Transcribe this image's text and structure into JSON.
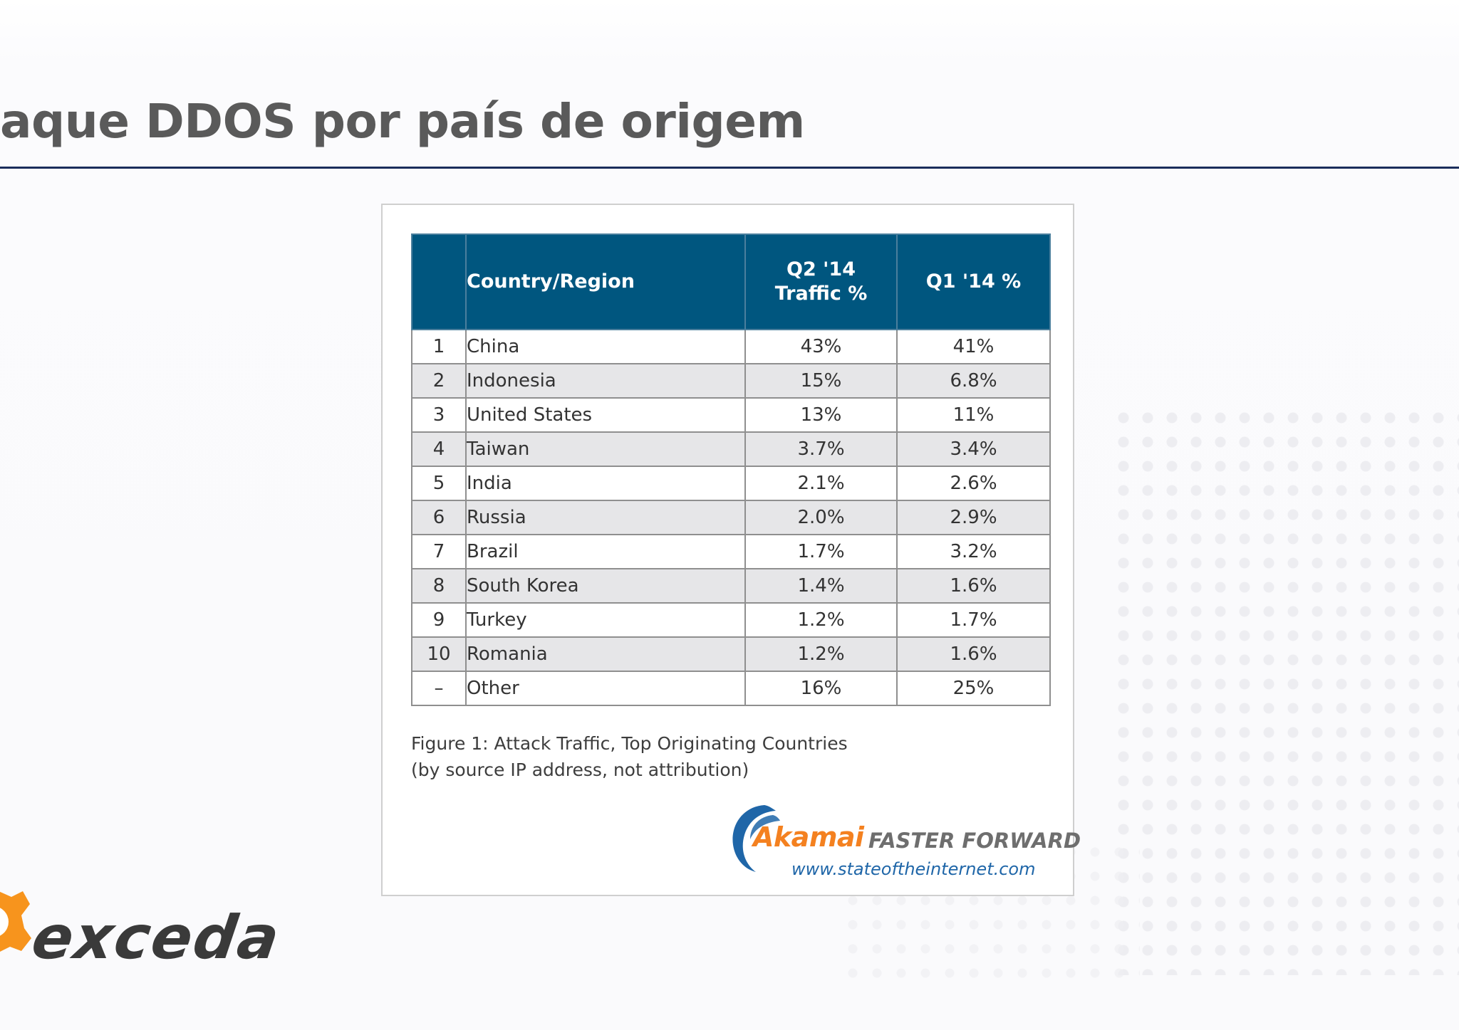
{
  "slide": {
    "title": "aque DDOS por país de origem"
  },
  "table": {
    "headers": {
      "country": "Country/Region",
      "q2_line1": "Q2 '14",
      "q2_line2": "Traffic %",
      "q1": "Q1 '14 %"
    },
    "rows": [
      {
        "rank": "1",
        "country": "China",
        "q2": "43%",
        "q1": "41%"
      },
      {
        "rank": "2",
        "country": "Indonesia",
        "q2": "15%",
        "q1": "6.8%"
      },
      {
        "rank": "3",
        "country": "United States",
        "q2": "13%",
        "q1": "11%"
      },
      {
        "rank": "4",
        "country": "Taiwan",
        "q2": "3.7%",
        "q1": "3.4%"
      },
      {
        "rank": "5",
        "country": "India",
        "q2": "2.1%",
        "q1": "2.6%"
      },
      {
        "rank": "6",
        "country": "Russia",
        "q2": "2.0%",
        "q1": "2.9%"
      },
      {
        "rank": "7",
        "country": "Brazil",
        "q2": "1.7%",
        "q1": "3.2%"
      },
      {
        "rank": "8",
        "country": "South Korea",
        "q2": "1.4%",
        "q1": "1.6%"
      },
      {
        "rank": "9",
        "country": "Turkey",
        "q2": "1.2%",
        "q1": "1.7%"
      },
      {
        "rank": "10",
        "country": "Romania",
        "q2": "1.2%",
        "q1": "1.6%"
      },
      {
        "rank": "–",
        "country": "Other",
        "q2": "16%",
        "q1": "25%"
      }
    ]
  },
  "caption": {
    "line1": "Figure 1: Attack Traffic, Top Originating Countries",
    "line2": "(by source IP address, not attribution)"
  },
  "akamai": {
    "brand": "Akamai",
    "tagline": "FASTER FORWARD",
    "url": "www.stateoftheinternet.com"
  },
  "footer": {
    "logo_text": "exceda",
    "logo_icon": "gear-icon"
  },
  "colors": {
    "header_blue": "#00567f",
    "title_gray": "#5a5a5a",
    "rule_navy": "#1a2d5c",
    "akamai_orange": "#f48120",
    "akamai_blue": "#1f66a8",
    "exceda_orange": "#f7941d",
    "row_shade": "#e6e6e8"
  }
}
